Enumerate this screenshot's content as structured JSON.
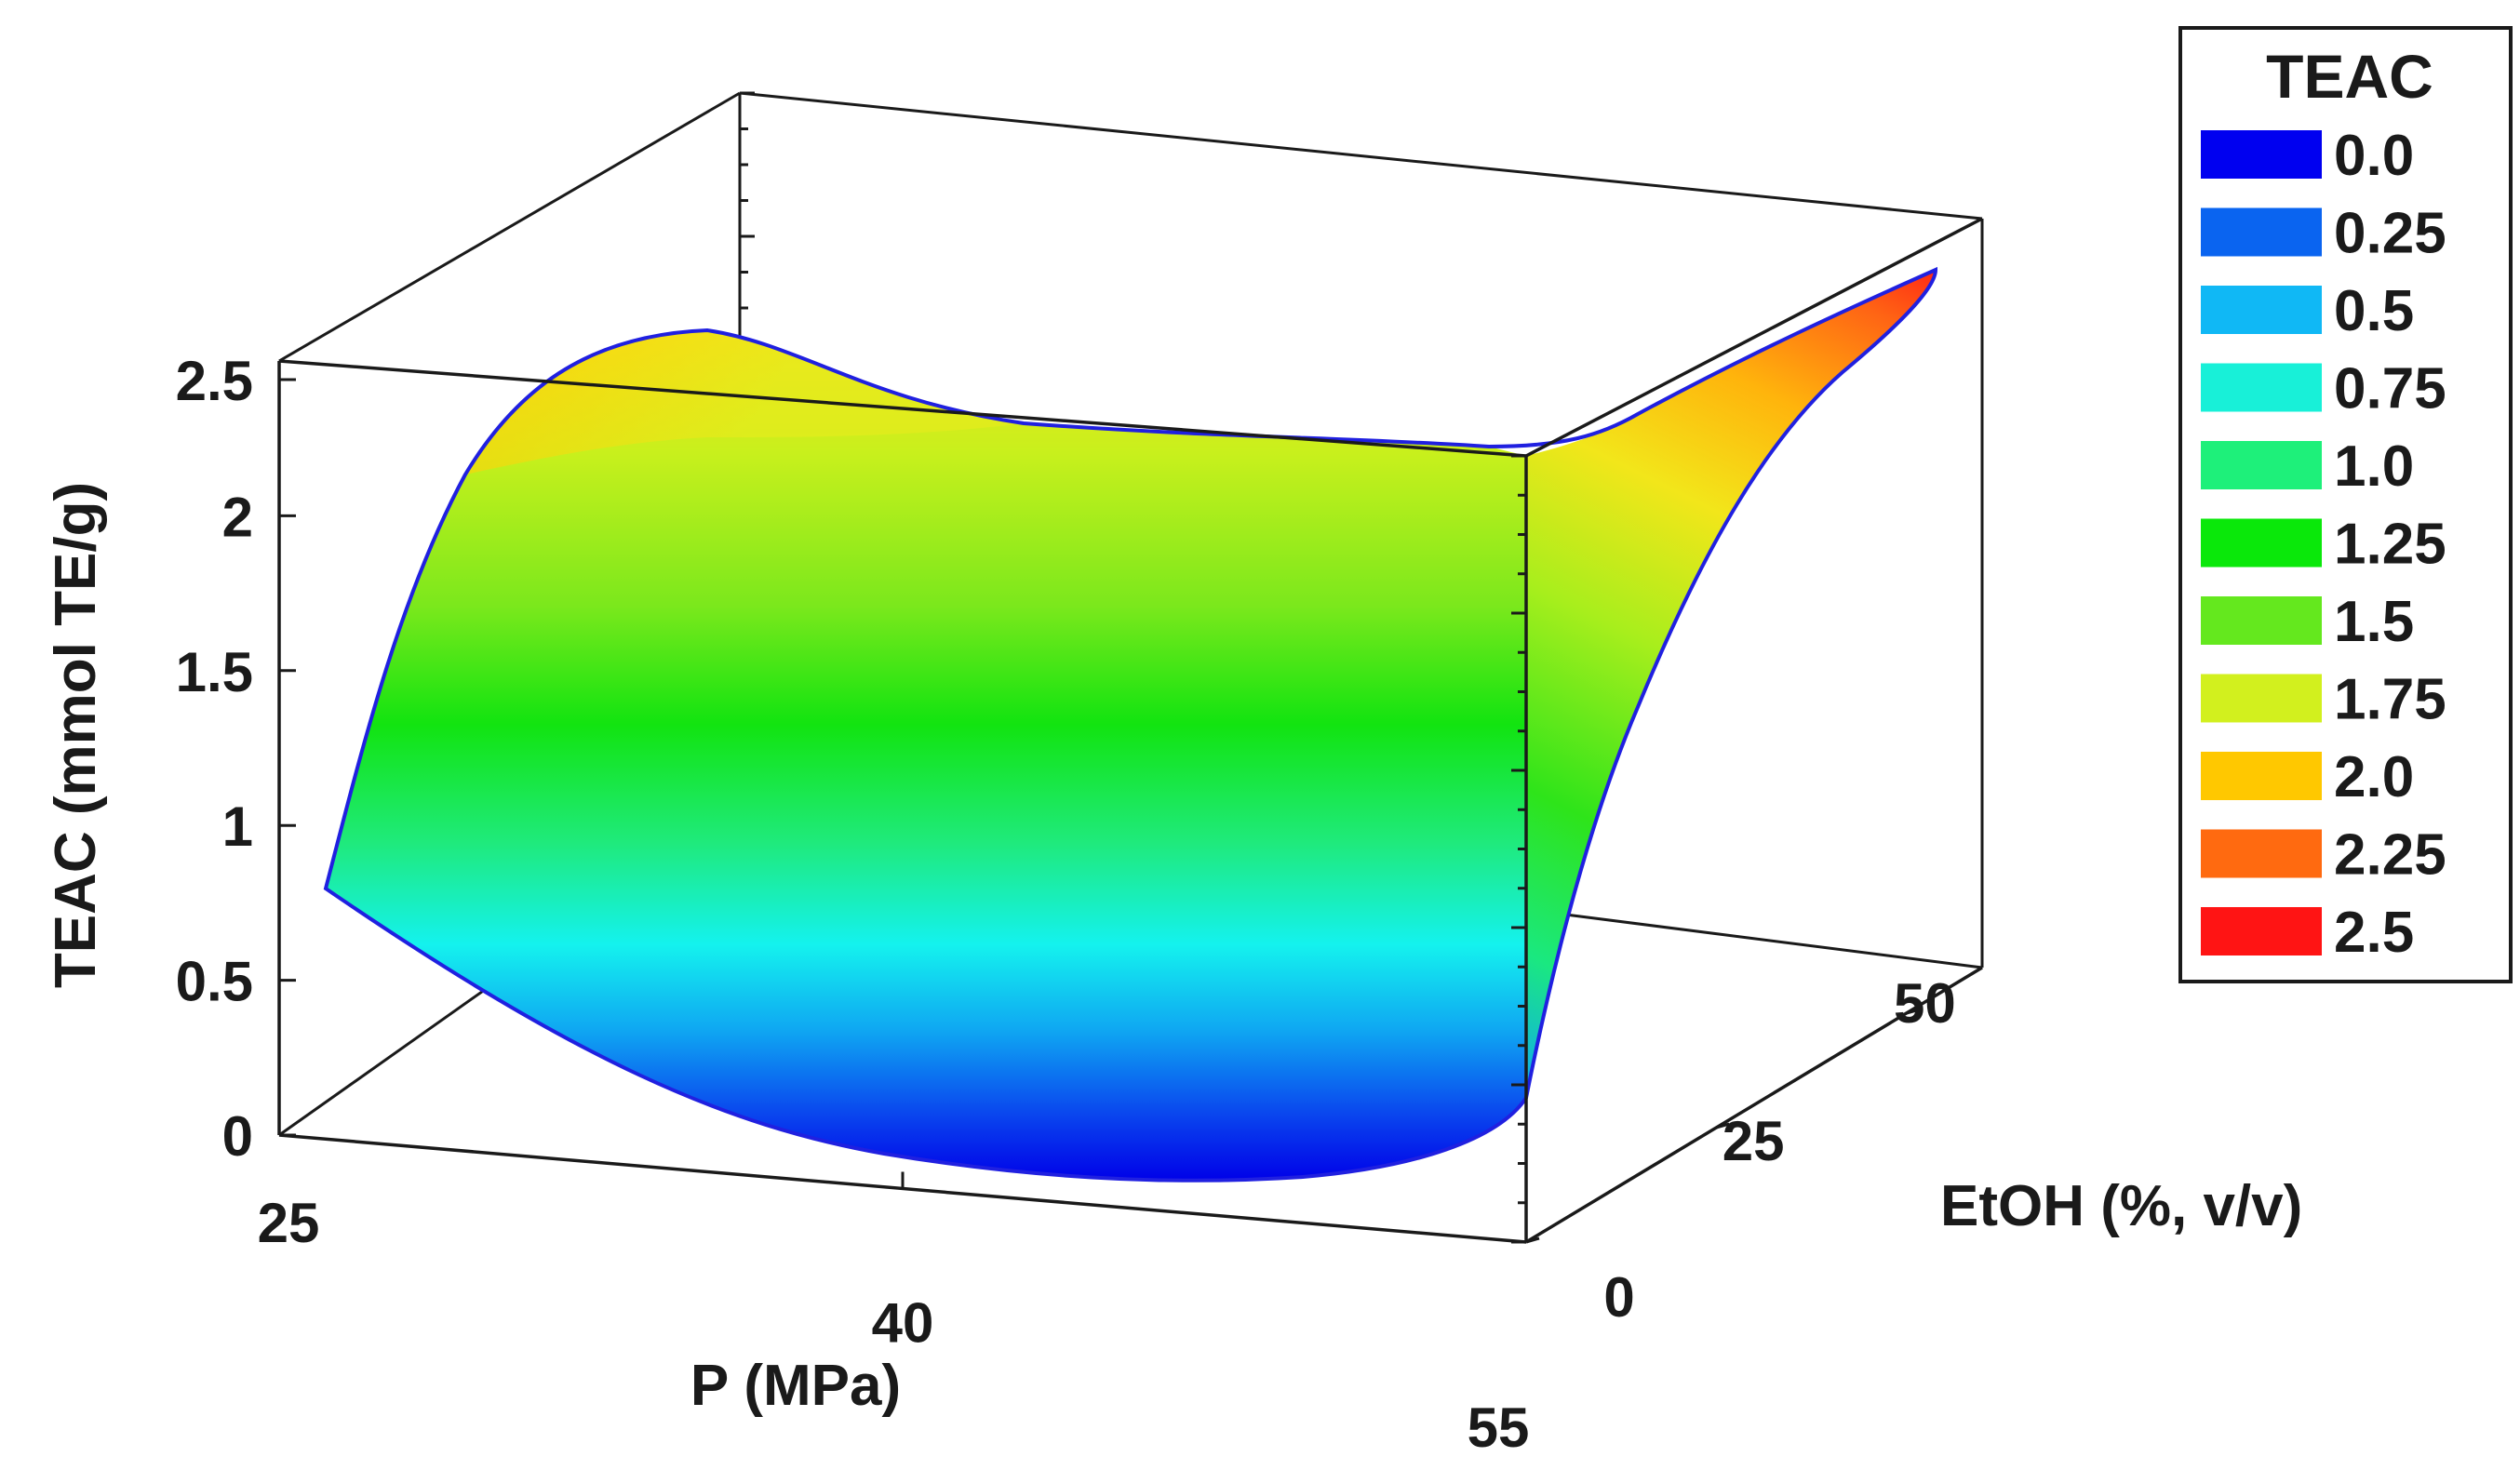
{
  "chart_data": {
    "type": "surface3d",
    "x_axis": {
      "label": "P (MPa)",
      "ticks": [
        25,
        40,
        55
      ],
      "range": [
        25,
        55
      ]
    },
    "y_axis": {
      "label": "EtOH (%, v/v)",
      "ticks": [
        0,
        25,
        50
      ],
      "range": [
        0,
        60
      ]
    },
    "z_axis": {
      "label": "TEAC (mmol TE/g)",
      "ticks": [
        "0",
        "0.5",
        "1",
        "1.5",
        "2",
        "2.5"
      ],
      "range": [
        0,
        2.5
      ]
    },
    "surface": {
      "description_points": [
        {
          "P": 25,
          "EtOH": 0,
          "TEAC": 0.8
        },
        {
          "P": 47,
          "EtOH": 0,
          "TEAC": 0.0
        },
        {
          "P": 55,
          "EtOH": 0,
          "TEAC": 0.0
        },
        {
          "P": 30,
          "EtOH": 60,
          "TEAC": 2.5
        },
        {
          "P": 45,
          "EtOH": 60,
          "TEAC": 2.3
        },
        {
          "P": 55,
          "EtOH": 60,
          "TEAC": 2.6
        }
      ]
    },
    "legend": {
      "title": "TEAC",
      "placement": "right",
      "entries": [
        {
          "label": "0.0",
          "color": "#0000f0"
        },
        {
          "label": "0.25",
          "color": "#0a64f0"
        },
        {
          "label": "0.5",
          "color": "#10b8f5"
        },
        {
          "label": "0.75",
          "color": "#18f0d8"
        },
        {
          "label": "1.0",
          "color": "#1ef07a"
        },
        {
          "label": "1.25",
          "color": "#0ae80a"
        },
        {
          "label": "1.5",
          "color": "#64e81e"
        },
        {
          "label": "1.75",
          "color": "#d2f01e"
        },
        {
          "label": "2.0",
          "color": "#ffc800"
        },
        {
          "label": "2.25",
          "color": "#ff6a10"
        },
        {
          "label": "2.5",
          "color": "#ff1414"
        }
      ]
    }
  }
}
